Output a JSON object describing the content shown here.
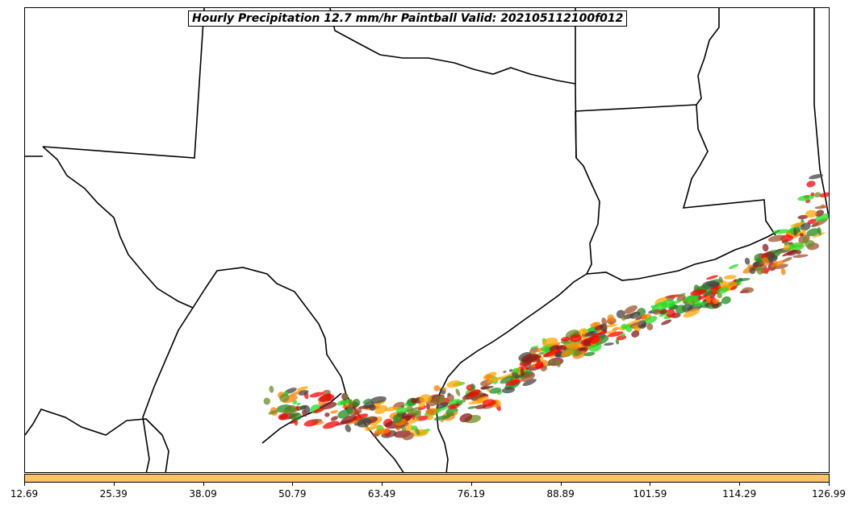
{
  "title": "Hourly Precipitation 12.7 mm/hr Paintball Valid: 202105112100f012",
  "colorbar": {
    "color": "#FFC266",
    "ticks": [
      "12.69",
      "25.39",
      "38.09",
      "50.79",
      "63.49",
      "76.19",
      "88.89",
      "101.59",
      "114.29",
      "126.99"
    ]
  },
  "paintball_colors": [
    "#FF0000",
    "#FF7F00",
    "#FFA500",
    "#22DD22",
    "#228B22",
    "#6B8E23",
    "#8B1A1A",
    "#A0522D",
    "#444444"
  ]
}
